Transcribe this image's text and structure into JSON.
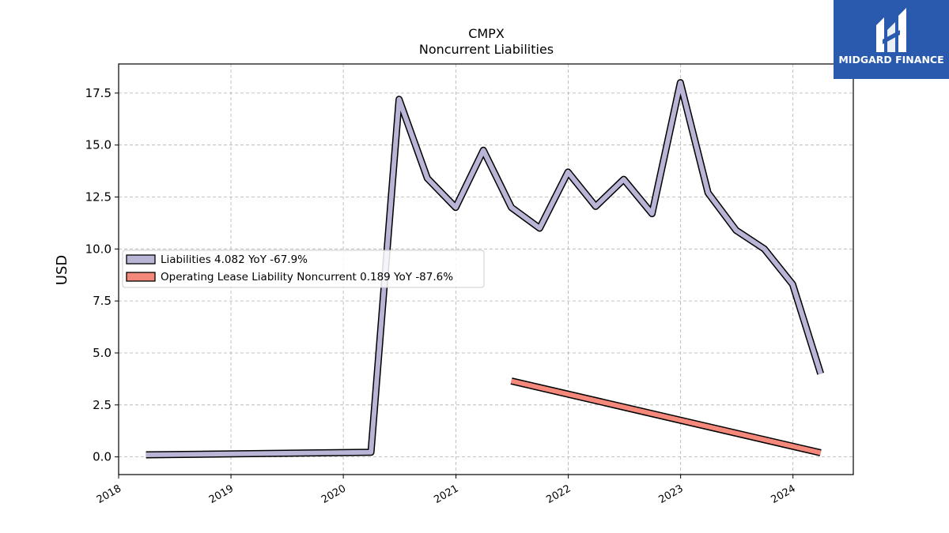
{
  "chart_data": {
    "type": "line",
    "title": "CMPX",
    "subtitle": "Noncurrent  Liabilities",
    "ylabel": "USD",
    "xlabel": "",
    "xlim": [
      "2018-01-01",
      "2024-07-15"
    ],
    "ylim": [
      -0.85,
      18.9
    ],
    "x_ticks": [
      "2018",
      "2019",
      "2020",
      "2021",
      "2022",
      "2023",
      "2024"
    ],
    "y_ticks": [
      "0.0",
      "2.5",
      "5.0",
      "7.5",
      "10.0",
      "12.5",
      "15.0",
      "17.5"
    ],
    "grid": true,
    "legend_position": "center-left",
    "series": [
      {
        "name": "Liabilities  4.082 YoY -67.9%",
        "color": "#b8b5d6",
        "points": [
          [
            "2018-03-31",
            0.1
          ],
          [
            "2020-03-31",
            0.22
          ],
          [
            "2020-06-30",
            17.2
          ],
          [
            "2020-09-30",
            13.4
          ],
          [
            "2020-12-31",
            12.0
          ],
          [
            "2021-03-31",
            14.75
          ],
          [
            "2021-06-30",
            12.0
          ],
          [
            "2021-09-30",
            11.0
          ],
          [
            "2021-12-31",
            13.7
          ],
          [
            "2022-03-31",
            12.05
          ],
          [
            "2022-06-30",
            13.35
          ],
          [
            "2022-09-30",
            11.7
          ],
          [
            "2022-12-31",
            18.0
          ],
          [
            "2023-03-31",
            12.7
          ],
          [
            "2023-06-30",
            10.9
          ],
          [
            "2023-09-30",
            10.0
          ],
          [
            "2023-12-31",
            8.3
          ],
          [
            "2024-03-31",
            4.0
          ]
        ]
      },
      {
        "name": "Operating Lease Liability Noncurrent  0.189 YoY -87.6%",
        "color": "#f4897b",
        "points": [
          [
            "2021-06-30",
            3.65
          ],
          [
            "2024-03-31",
            0.2
          ]
        ]
      }
    ]
  },
  "branding": {
    "logo_text": "MIDGARD FINANCE",
    "logo_color": "#2a5aad"
  }
}
